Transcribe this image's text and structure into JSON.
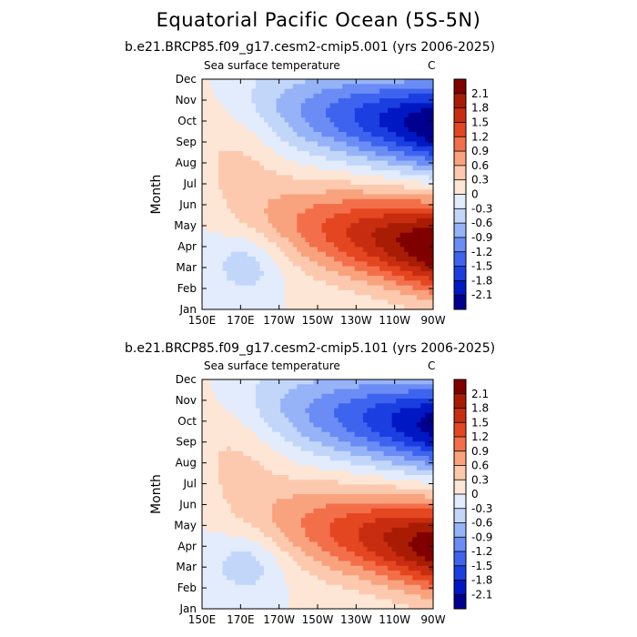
{
  "page_title": "Equatorial Pacific Ocean (5S-5N)",
  "chart_data": [
    {
      "type": "heatmap",
      "title": "b.e21.BRCP85.f09_g17.cesm2-cmip5.001 (yrs 2006-2025)",
      "left_label": "Sea surface temperature",
      "right_label": "C",
      "ylabel": "Month",
      "xlabel": "",
      "x_ticks": [
        "150E",
        "170E",
        "170W",
        "150W",
        "130W",
        "110W",
        "90W"
      ],
      "y_ticks": [
        "Jan",
        "Feb",
        "Mar",
        "Apr",
        "May",
        "Jun",
        "Jul",
        "Aug",
        "Sep",
        "Oct",
        "Nov",
        "Dec"
      ],
      "z_range": [
        -2.4,
        2.4
      ],
      "colorbar_levels": [
        -2.1,
        -1.8,
        -1.5,
        -1.2,
        -0.9,
        -0.6,
        -0.3,
        0,
        0.3,
        0.6,
        0.9,
        1.2,
        1.5,
        1.8,
        2.1
      ],
      "colorbar_labels": [
        "2.1",
        "1.8",
        "1.5",
        "1.2",
        "0.9",
        "0.6",
        "0.3",
        "0",
        "-0.3",
        "-0.6",
        "-0.9",
        "-1.2",
        "-1.5",
        "-1.8",
        "-2.1"
      ]
    },
    {
      "type": "heatmap",
      "title": "b.e21.BRCP85.f09_g17.cesm2-cmip5.101 (yrs 2006-2025)",
      "left_label": "Sea surface temperature",
      "right_label": "C",
      "ylabel": "Month",
      "xlabel": "",
      "x_ticks": [
        "150E",
        "170E",
        "170W",
        "150W",
        "130W",
        "110W",
        "90W"
      ],
      "y_ticks": [
        "Jan",
        "Feb",
        "Mar",
        "Apr",
        "May",
        "Jun",
        "Jul",
        "Aug",
        "Sep",
        "Oct",
        "Nov",
        "Dec"
      ],
      "z_range": [
        -2.4,
        2.4
      ],
      "colorbar_levels": [
        -2.1,
        -1.8,
        -1.5,
        -1.2,
        -0.9,
        -0.6,
        -0.3,
        0,
        0.3,
        0.6,
        0.9,
        1.2,
        1.5,
        1.8,
        2.1
      ],
      "colorbar_labels": [
        "2.1",
        "1.8",
        "1.5",
        "1.2",
        "0.9",
        "0.6",
        "0.3",
        "0",
        "-0.3",
        "-0.6",
        "-0.9",
        "-1.2",
        "-1.5",
        "-1.8",
        "-2.1"
      ]
    }
  ],
  "palette": [
    "#00008f",
    "#0018c4",
    "#1a3ee0",
    "#3e64ef",
    "#6a8cf4",
    "#96b3f7",
    "#c2d6fa",
    "#e2ecfd",
    "#fde6d6",
    "#fcc9ae",
    "#f9a27e",
    "#f36f4a",
    "#e44621",
    "#c82d10",
    "#a81c05",
    "#800000"
  ]
}
